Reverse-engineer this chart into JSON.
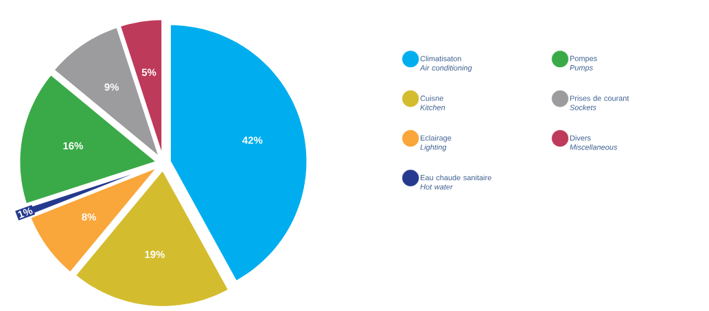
{
  "chart_data": {
    "type": "pie",
    "categories": [
      "Climatisaton\n*Air conditioning*",
      "Cuisne\n*Kitchen*",
      "Eclairage\n*Lighting*",
      "Eau chaude sanitaire\n*Hot water*",
      "Pompes\n*Pumps*",
      "Prises de courant\n*Sockets*",
      "Divers\n*Miscellaneous*"
    ],
    "values": [
      42,
      19,
      8,
      1,
      16,
      9,
      5
    ],
    "colors": [
      "#00aeef",
      "#d4bc2f",
      "#f9a63a",
      "#253a8e",
      "#3aaa48",
      "#9c9c9e",
      "#be3a5a"
    ],
    "value_labels": [
      "42%",
      "19%",
      "8%",
      "1%",
      "16%",
      "9%",
      "5%"
    ],
    "legend": "right"
  }
}
